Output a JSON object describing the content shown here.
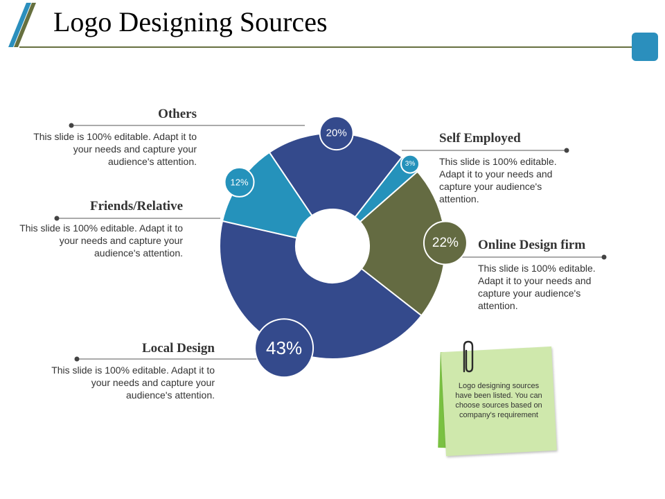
{
  "header": {
    "title": "Logo Designing Sources",
    "accent_colors": [
      "#2b8fbd",
      "#66703f"
    ]
  },
  "chart_data": {
    "type": "pie",
    "donut": true,
    "categories": [
      "Others",
      "Self Employed",
      "Online Design firm",
      "Local Design",
      "Friends/Relative"
    ],
    "values": [
      20,
      3,
      22,
      43,
      12
    ],
    "value_labels": [
      "20%",
      "3%",
      "22%",
      "43%",
      "12%"
    ],
    "colors": [
      "#344a8c",
      "#2592bb",
      "#646b42",
      "#344a8c",
      "#2592bb"
    ]
  },
  "labels": [
    {
      "title": "Others",
      "desc": "This slide is 100% editable. Adapt it to your needs and capture your audience's attention."
    },
    {
      "title": "Self Employed",
      "desc": "This slide is 100% editable. Adapt it to your needs and capture your audience's attention."
    },
    {
      "title": "Online Design firm",
      "desc": "This slide is 100% editable. Adapt it to your needs and capture your audience's attention."
    },
    {
      "title": "Local Design",
      "desc": "This slide is 100% editable. Adapt it to your needs and capture your audience's attention."
    },
    {
      "title": "Friends/Relative",
      "desc": "This slide is 100% editable. Adapt it to your needs and capture your audience's attention."
    }
  ],
  "note": {
    "text": "Logo designing sources have been listed. You can choose sources based on company's requirement",
    "icon": "paperclip-icon"
  }
}
